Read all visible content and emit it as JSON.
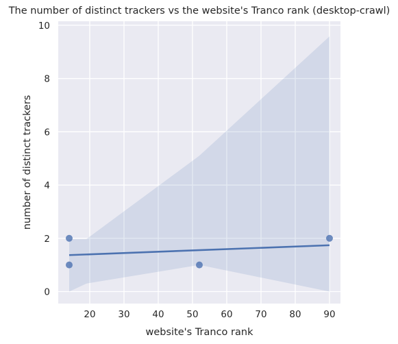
{
  "chart_data": {
    "type": "scatter",
    "title": "The number of distinct trackers vs the website's Tranco rank (desktop-crawl)",
    "xlabel": "website's Tranco rank",
    "ylabel": "number of distinct trackers",
    "xlim": [
      10.8,
      93.2
    ],
    "ylim": [
      -0.45,
      10.15
    ],
    "xticks": [
      20,
      30,
      40,
      50,
      60,
      70,
      80,
      90
    ],
    "yticks": [
      0,
      2,
      4,
      6,
      8,
      10
    ],
    "grid": true,
    "points": [
      {
        "x": 14,
        "y": 2
      },
      {
        "x": 14,
        "y": 1
      },
      {
        "x": 52,
        "y": 1
      },
      {
        "x": 90,
        "y": 2
      }
    ],
    "regression": {
      "x": [
        14,
        90
      ],
      "y": [
        1.37,
        1.74
      ]
    },
    "confidence_band": {
      "x": [
        14,
        19,
        52,
        90
      ],
      "upper": [
        1.97,
        1.97,
        5.1,
        9.58
      ],
      "lower": [
        0.0,
        0.3,
        1.0,
        0.0
      ]
    },
    "colors": {
      "background": "#eaeaf2",
      "grid": "#ffffff",
      "point": "#4c72b0",
      "line": "#4c72b0",
      "band": "#4c72b0"
    }
  }
}
